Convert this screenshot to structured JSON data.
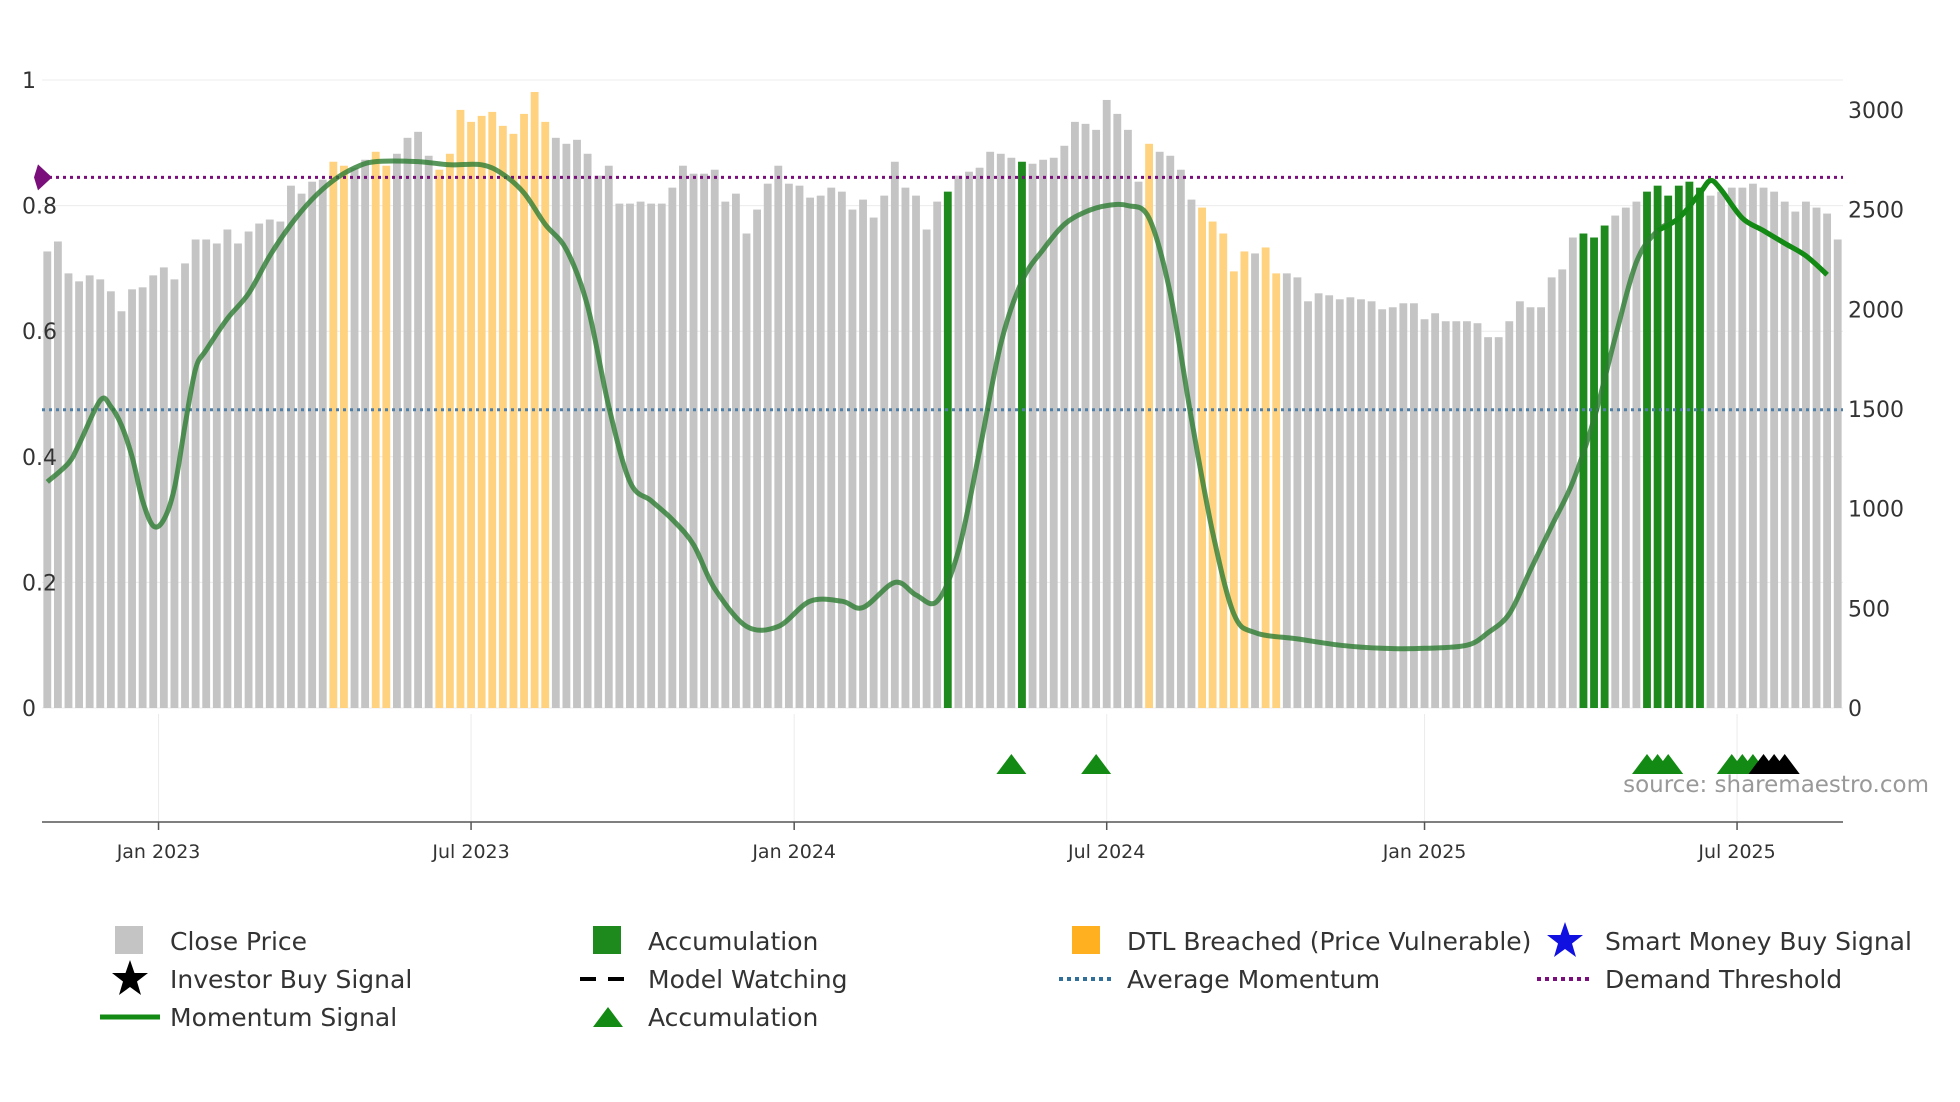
{
  "chart_data": {
    "type": "bar+line",
    "left_axis": {
      "ticks": [
        "0",
        "0.2",
        "0.4",
        "0.6",
        "0.8",
        "1"
      ],
      "range": [
        0,
        1
      ]
    },
    "right_axis": {
      "ticks": [
        "0",
        "500",
        "1000",
        "1500",
        "2000",
        "2500",
        "3000"
      ],
      "range": [
        0,
        3150
      ]
    },
    "x_ticks": [
      {
        "label": "Jan 2023",
        "index": 10.5
      },
      {
        "label": "Jul 2023",
        "index": 40
      },
      {
        "label": "Jan 2024",
        "index": 70.5
      },
      {
        "label": "Jul 2024",
        "index": 100
      },
      {
        "label": "Jan 2025",
        "index": 130
      },
      {
        "label": "Jul 2025",
        "index": 159.5
      }
    ],
    "close_price": [
      2290,
      2340,
      2180,
      2140,
      2170,
      2150,
      2090,
      1990,
      2100,
      2110,
      2170,
      2210,
      2150,
      2230,
      2350,
      2350,
      2330,
      2400,
      2330,
      2390,
      2430,
      2450,
      2440,
      2620,
      2580,
      2640,
      2650,
      2740,
      2720,
      2710,
      2750,
      2790,
      2720,
      2780,
      2860,
      2890,
      2770,
      2700,
      2780,
      3000,
      2940,
      2970,
      2990,
      2920,
      2880,
      2980,
      3090,
      2940,
      2860,
      2830,
      2850,
      2780,
      2670,
      2720,
      2530,
      2530,
      2540,
      2530,
      2530,
      2610,
      2720,
      2680,
      2680,
      2700,
      2540,
      2580,
      2380,
      2500,
      2630,
      2720,
      2630,
      2620,
      2560,
      2570,
      2610,
      2590,
      2500,
      2550,
      2460,
      2570,
      2740,
      2610,
      2570,
      2400,
      2540,
      2590,
      2670,
      2690,
      2710,
      2790,
      2780,
      2760,
      2740,
      2730,
      2750,
      2760,
      2820,
      2940,
      2930,
      2900,
      3050,
      2980,
      2900,
      2640,
      2830,
      2790,
      2770,
      2700,
      2550,
      2510,
      2440,
      2380,
      2190,
      2290,
      2280,
      2310,
      2180,
      2180,
      2160,
      2040,
      2080,
      2070,
      2050,
      2060,
      2050,
      2040,
      2000,
      2010,
      2030,
      2030,
      1950,
      1980,
      1940,
      1940,
      1940,
      1930,
      1860,
      1860,
      1940,
      2040,
      2010,
      2010,
      2160,
      2200,
      2360,
      2380,
      2360,
      2420,
      2470,
      2510,
      2540,
      2590,
      2620,
      2570,
      2620,
      2640,
      2610,
      2570,
      2590,
      2610,
      2610,
      2630,
      2610,
      2590,
      2540,
      2490,
      2540,
      2510,
      2480,
      2350
    ],
    "bar_category": "gggggggggggggggggggggggggggooggooggggooooooooooogggggggggggggggggggggggggggggggggggggaggggggagggggggggggoggggooooogooggggggggggggggggggggggggggggaaagggaaaaaaggggggggggggggggggggggggggggggg",
    "momentum_points": [
      [
        0,
        0.36
      ],
      [
        2,
        0.39
      ],
      [
        3,
        0.42
      ],
      [
        5,
        0.49
      ],
      [
        6,
        0.48
      ],
      [
        7,
        0.45
      ],
      [
        8,
        0.4
      ],
      [
        9,
        0.33
      ],
      [
        10,
        0.29
      ],
      [
        11,
        0.3
      ],
      [
        12,
        0.35
      ],
      [
        13,
        0.45
      ],
      [
        14,
        0.54
      ],
      [
        15,
        0.57
      ],
      [
        17,
        0.62
      ],
      [
        19,
        0.66
      ],
      [
        21,
        0.72
      ],
      [
        23,
        0.77
      ],
      [
        25,
        0.81
      ],
      [
        27,
        0.84
      ],
      [
        29,
        0.86
      ],
      [
        31,
        0.87
      ],
      [
        35,
        0.87
      ],
      [
        38,
        0.865
      ],
      [
        41,
        0.865
      ],
      [
        43,
        0.85
      ],
      [
        45,
        0.82
      ],
      [
        47,
        0.77
      ],
      [
        49,
        0.73
      ],
      [
        51,
        0.64
      ],
      [
        53,
        0.48
      ],
      [
        55,
        0.36
      ],
      [
        57,
        0.33
      ],
      [
        59,
        0.3
      ],
      [
        61,
        0.26
      ],
      [
        63,
        0.19
      ],
      [
        66,
        0.13
      ],
      [
        69,
        0.13
      ],
      [
        72,
        0.17
      ],
      [
        75,
        0.17
      ],
      [
        77,
        0.16
      ],
      [
        80,
        0.2
      ],
      [
        82,
        0.18
      ],
      [
        84,
        0.17
      ],
      [
        86,
        0.25
      ],
      [
        88,
        0.41
      ],
      [
        90,
        0.58
      ],
      [
        92,
        0.68
      ],
      [
        94,
        0.73
      ],
      [
        96,
        0.77
      ],
      [
        98,
        0.79
      ],
      [
        100,
        0.8
      ],
      [
        102,
        0.8
      ],
      [
        104,
        0.78
      ],
      [
        106,
        0.66
      ],
      [
        108,
        0.46
      ],
      [
        110,
        0.28
      ],
      [
        112,
        0.15
      ],
      [
        114,
        0.12
      ],
      [
        118,
        0.11
      ],
      [
        122,
        0.1
      ],
      [
        126,
        0.095
      ],
      [
        130,
        0.095
      ],
      [
        134,
        0.1
      ],
      [
        136,
        0.12
      ],
      [
        138,
        0.15
      ],
      [
        140,
        0.22
      ],
      [
        142,
        0.29
      ],
      [
        144,
        0.36
      ],
      [
        146,
        0.46
      ],
      [
        148,
        0.59
      ],
      [
        150,
        0.71
      ],
      [
        152,
        0.76
      ],
      [
        154,
        0.78
      ],
      [
        156,
        0.82
      ],
      [
        157,
        0.84
      ],
      [
        158,
        0.825
      ],
      [
        160,
        0.78
      ],
      [
        162,
        0.76
      ],
      [
        164,
        0.74
      ],
      [
        166,
        0.72
      ],
      [
        168,
        0.69
      ]
    ],
    "bright_from_index": 151,
    "average_momentum": 0.475,
    "demand_threshold": 0.845,
    "accumulation_markers": [
      91,
      99,
      151,
      152,
      153,
      159,
      160,
      161
    ],
    "investor_markers": [
      162,
      163,
      164
    ],
    "source_text": "source: sharemaestro.com",
    "colors": {
      "close_price": "#c4c4c4",
      "accumulation": "#1e8a1e",
      "dtl_breached": "#ffd280",
      "momentum": "#2e7d32",
      "momentum_bright": "#138a13",
      "average_momentum": "#4f7fa6",
      "demand_threshold": "#7a0e7a",
      "investor": "#000000",
      "smart_money": "#1010e0"
    },
    "legend": [
      {
        "label": "Close Price",
        "symbol": "square-gray"
      },
      {
        "label": "Accumulation",
        "symbol": "square-green"
      },
      {
        "label": "DTL Breached (Price Vulnerable)",
        "symbol": "square-orange"
      },
      {
        "label": "Smart Money Buy Signal",
        "symbol": "star-blue"
      },
      {
        "label": "Investor Buy Signal",
        "symbol": "star-black"
      },
      {
        "label": "Model Watching",
        "symbol": "dash-black"
      },
      {
        "label": "Average Momentum",
        "symbol": "dot-blue"
      },
      {
        "label": "Demand Threshold",
        "symbol": "dot-purple"
      },
      {
        "label": "Momentum Signal",
        "symbol": "line-green"
      },
      {
        "label": "Accumulation",
        "symbol": "triangle-green"
      }
    ]
  }
}
